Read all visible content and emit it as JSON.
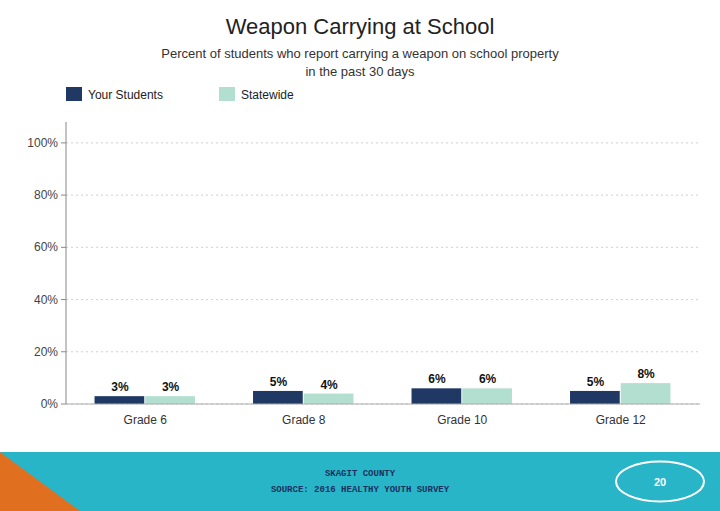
{
  "chart_data": {
    "type": "bar",
    "title": "Weapon Carrying at School",
    "subtitle": "Percent of students who report carrying a weapon on school property\nin the past 30 days",
    "categories": [
      "Grade 6",
      "Grade 8",
      "Grade 10",
      "Grade 12"
    ],
    "series": [
      {
        "name": "Your Students",
        "color": "#1f3864",
        "values": [
          3,
          5,
          6,
          5
        ],
        "value_labels": [
          "3%",
          "5%",
          "6%",
          "5%"
        ]
      },
      {
        "name": "Statewide",
        "color": "#b2dfd0",
        "values": [
          3,
          4,
          6,
          8
        ],
        "value_labels": [
          "3%",
          "4%",
          "6%",
          "8%"
        ]
      }
    ],
    "ylim": [
      0,
      108
    ],
    "yticks": [
      {
        "value": 0,
        "label": "0%"
      },
      {
        "value": 20,
        "label": "20%"
      },
      {
        "value": 40,
        "label": "40%"
      },
      {
        "value": 60,
        "label": "60%"
      },
      {
        "value": 80,
        "label": "80%"
      },
      {
        "value": 100,
        "label": "100%"
      }
    ],
    "grid": true,
    "legend": "top",
    "data_labels": true,
    "annotations": [
      "SKAGIT COUNTY",
      "SOURCE: 2016 HEALTHY YOUTH SURVEY",
      "20"
    ]
  }
}
